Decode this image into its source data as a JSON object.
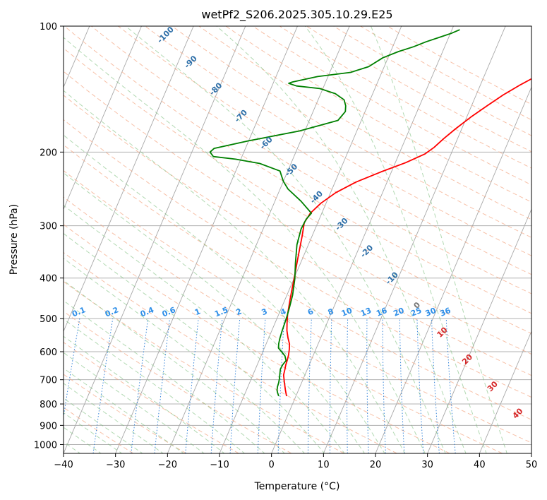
{
  "chart_data": {
    "type": "line",
    "title": "wetPf2_S206.2025.305.10.29.E25",
    "xlabel": "Temperature (°C)",
    "ylabel": "Pressure (hPa)",
    "xlim": [
      -40,
      50
    ],
    "ylim": [
      1050,
      100
    ],
    "y_scale": "log",
    "grid": true,
    "x_ticks": [
      -40,
      -30,
      -20,
      -10,
      0,
      10,
      20,
      30,
      40,
      50
    ],
    "x_tick_labels": [
      "−40",
      "−30",
      "−20",
      "−10",
      "0",
      "10",
      "20",
      "30",
      "40",
      "50"
    ],
    "y_ticks": [
      100,
      200,
      300,
      400,
      500,
      600,
      700,
      800,
      900,
      1000
    ],
    "y_tick_labels": [
      "100",
      "200",
      "300",
      "400",
      "500",
      "600",
      "700",
      "800",
      "900",
      "1000"
    ],
    "series": [
      {
        "color": "#ff0000",
        "x": [
          -1.8,
          -2.6,
          -3.4,
          -4.1,
          -4.3,
          -4.5,
          -4.6,
          -4.8,
          -5.1,
          -5.5,
          -6.3,
          -7.1,
          -7.7,
          -8.3,
          -9.0,
          -10.0,
          -11.0,
          -11.9,
          -12.6,
          -12.2,
          -11.0,
          -9.0,
          -6.0,
          -2.0,
          2.0,
          5.0,
          6.2,
          7.3,
          8.8,
          10.8,
          13.0,
          15.2,
          17.7,
          20.7,
          23.6,
          25.8,
          27.5,
          29.3,
          31.0,
          32.7
        ],
        "y": [
          766,
          738,
          708,
          682,
          662,
          645,
          628,
          610,
          592,
          575,
          556,
          534,
          512,
          488,
          452,
          400,
          355,
          318,
          295,
          280,
          265,
          250,
          236,
          223,
          212,
          202,
          195,
          186,
          176,
          165,
          155,
          146,
          138,
          130,
          123,
          116,
          110,
          105,
          101,
          98
        ]
      },
      {
        "color": "#008000",
        "x": [
          -3.3,
          -3.8,
          -4.1,
          -4.3,
          -4.4,
          -4.6,
          -4.9,
          -5.2,
          -5.1,
          -4.8,
          -5.4,
          -6.4,
          -7.3,
          -7.6,
          -7.8,
          -8.0,
          -8.2,
          -8.5,
          -8.9,
          -9.8,
          -11.0,
          -12.2,
          -12.7,
          -12.5,
          -12.0,
          -15.0,
          -18.5,
          -20.0,
          -20.8,
          -21.5,
          -26.0,
          -31.0,
          -35.5,
          -36.5,
          -36.0,
          -30.0,
          -21.0,
          -14.5,
          -13.8,
          -14.2,
          -15.0,
          -17.2,
          -20.6,
          -25.3,
          -27.0,
          -26.4,
          -22.0,
          -16.0,
          -13.0,
          -11.0,
          -8.5,
          -6.0,
          -4.0,
          -1.5,
          0.2,
          1.5
        ],
        "y": [
          766,
          752,
          742,
          728,
          712,
          696,
          678,
          660,
          645,
          630,
          614,
          600,
          588,
          574,
          558,
          535,
          500,
          470,
          440,
          402,
          368,
          333,
          305,
          289,
          280,
          262,
          245,
          235,
          228,
          222,
          213,
          208,
          205,
          200,
          196,
          188,
          178,
          168,
          160,
          155,
          150,
          145,
          141,
          139,
          137,
          136,
          132,
          129,
          125,
          119,
          115,
          112,
          109,
          106,
          104,
          102
        ]
      }
    ],
    "dry_adiabat_labels": [
      "-100",
      "-90",
      "-80",
      "-70",
      "-60",
      "-50",
      "-40",
      "-30",
      "-20",
      "-10",
      "0",
      "10",
      "20",
      "30",
      "40"
    ],
    "mixing_ratio_labels": [
      "0.1",
      "0.2",
      "0.4",
      "0.6",
      "1",
      "1.5",
      "2",
      "3",
      "4",
      "6",
      "8",
      "10",
      "13",
      "16",
      "20",
      "25",
      "30",
      "36"
    ]
  }
}
